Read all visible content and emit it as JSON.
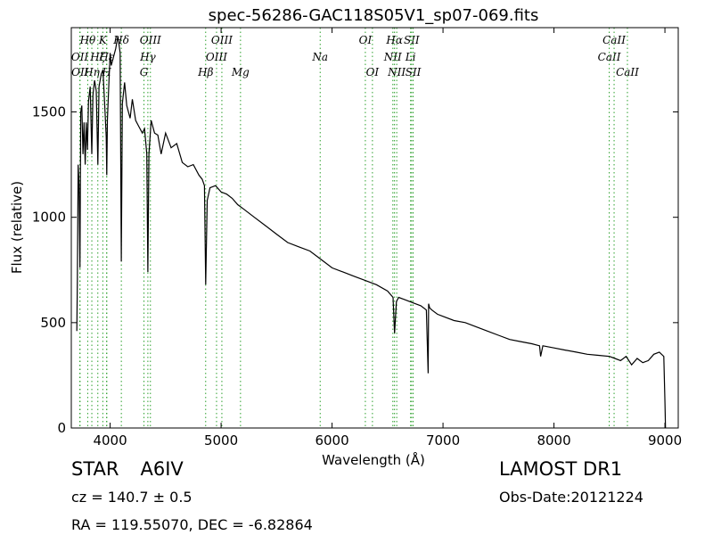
{
  "chart_data": {
    "type": "line",
    "title": "spec-56286-GAC118S05V1_sp07-069.fits",
    "xlabel": "Wavelength (Å)",
    "ylabel": "Flux (relative)",
    "xlim": [
      3650,
      9120
    ],
    "ylim": [
      0,
      1900
    ],
    "xticks": [
      4000,
      5000,
      6000,
      7000,
      8000,
      9000
    ],
    "yticks": [
      0,
      500,
      1000,
      1500
    ],
    "grid": false,
    "line_color": "#000000",
    "marker_line_color": "#2ca02c",
    "spectrum": {
      "x": [
        3700,
        3705,
        3712,
        3720,
        3728,
        3735,
        3745,
        3755,
        3765,
        3775,
        3785,
        3795,
        3805,
        3820,
        3835,
        3845,
        3860,
        3875,
        3889,
        3900,
        3920,
        3935,
        3950,
        3965,
        3970,
        3975,
        3990,
        4000,
        4010,
        4030,
        4050,
        4070,
        4090,
        4101,
        4110,
        4130,
        4150,
        4180,
        4200,
        4230,
        4260,
        4290,
        4310,
        4330,
        4340,
        4350,
        4370,
        4400,
        4430,
        4460,
        4500,
        4550,
        4600,
        4650,
        4700,
        4750,
        4800,
        4830,
        4850,
        4861,
        4875,
        4900,
        4950,
        5000,
        5050,
        5100,
        5150,
        5200,
        5300,
        5400,
        5500,
        5600,
        5700,
        5800,
        5900,
        6000,
        6100,
        6200,
        6300,
        6400,
        6500,
        6550,
        6563,
        6580,
        6600,
        6650,
        6700,
        6750,
        6800,
        6850,
        6866,
        6870,
        6880,
        6900,
        6950,
        7000,
        7100,
        7200,
        7300,
        7400,
        7500,
        7600,
        7700,
        7800,
        7870,
        7880,
        7900,
        8000,
        8100,
        8200,
        8300,
        8400,
        8500,
        8550,
        8600,
        8650,
        8700,
        8750,
        8800,
        8850,
        8900,
        8950,
        8990,
        9000,
        9005
      ],
      "y": [
        460,
        700,
        1250,
        1150,
        760,
        1500,
        1530,
        1300,
        1450,
        1250,
        1450,
        1320,
        1550,
        1620,
        1300,
        1580,
        1650,
        1600,
        1250,
        1620,
        1680,
        1700,
        1550,
        1380,
        1200,
        1460,
        1650,
        1780,
        1720,
        1760,
        1800,
        1860,
        1780,
        790,
        1540,
        1640,
        1530,
        1470,
        1560,
        1460,
        1430,
        1400,
        1420,
        1300,
        740,
        1300,
        1460,
        1400,
        1390,
        1300,
        1400,
        1330,
        1350,
        1260,
        1240,
        1250,
        1200,
        1180,
        1150,
        680,
        1080,
        1140,
        1150,
        1120,
        1110,
        1090,
        1060,
        1040,
        1000,
        960,
        920,
        880,
        860,
        840,
        800,
        760,
        740,
        720,
        700,
        680,
        650,
        620,
        450,
        600,
        620,
        610,
        600,
        590,
        580,
        560,
        260,
        590,
        570,
        560,
        540,
        530,
        510,
        500,
        480,
        460,
        440,
        420,
        410,
        400,
        390,
        340,
        390,
        380,
        370,
        360,
        350,
        345,
        340,
        330,
        320,
        340,
        300,
        330,
        310,
        320,
        350,
        360,
        340,
        120,
        0
      ]
    },
    "line_markers": [
      {
        "wavelength": 3727,
        "label": "OII",
        "row": 2
      },
      {
        "wavelength": 3729,
        "label": "OII",
        "row": 3
      },
      {
        "wavelength": 3798,
        "label": "Hθ",
        "row": 1
      },
      {
        "wavelength": 3835,
        "label": "Hη",
        "row": 3
      },
      {
        "wavelength": 3889,
        "label": "Hζ",
        "row": 2
      },
      {
        "wavelength": 3934,
        "label": "K",
        "row": 1
      },
      {
        "wavelength": 3968,
        "label": "H",
        "row": 3
      },
      {
        "wavelength": 3970,
        "label": "Hε",
        "row": 2
      },
      {
        "wavelength": 4101,
        "label": "Hδ",
        "row": 1
      },
      {
        "wavelength": 4305,
        "label": "G",
        "row": 3
      },
      {
        "wavelength": 4340,
        "label": "Hγ",
        "row": 2
      },
      {
        "wavelength": 4363,
        "label": "OIII",
        "row": 1
      },
      {
        "wavelength": 4861,
        "label": "Hβ",
        "row": 3
      },
      {
        "wavelength": 4959,
        "label": "OIII",
        "row": 2
      },
      {
        "wavelength": 5007,
        "label": "OIII",
        "row": 1
      },
      {
        "wavelength": 5175,
        "label": "Mg",
        "row": 3
      },
      {
        "wavelength": 5893,
        "label": "Na",
        "row": 2
      },
      {
        "wavelength": 6300,
        "label": "OI",
        "row": 1
      },
      {
        "wavelength": 6364,
        "label": "OI",
        "row": 3
      },
      {
        "wavelength": 6548,
        "label": "NII",
        "row": 2
      },
      {
        "wavelength": 6563,
        "label": "Hα",
        "row": 1
      },
      {
        "wavelength": 6583,
        "label": "NII",
        "row": 3
      },
      {
        "wavelength": 6708,
        "label": "Li",
        "row": 2
      },
      {
        "wavelength": 6717,
        "label": "SII",
        "row": 1
      },
      {
        "wavelength": 6731,
        "label": "SII",
        "row": 3
      },
      {
        "wavelength": 8498,
        "label": "CaII",
        "row": 2
      },
      {
        "wavelength": 8542,
        "label": "CaII",
        "row": 1
      },
      {
        "wavelength": 8662,
        "label": "CaII",
        "row": 3
      }
    ]
  },
  "info": {
    "class_label": "STAR",
    "subclass": "A6IV",
    "cz_text": "cz = 140.7  ± 0.5",
    "radec_text": "RA = 119.55070, DEC = -6.82864",
    "survey": "LAMOST DR1",
    "obs_date": "Obs-Date:20121224"
  }
}
